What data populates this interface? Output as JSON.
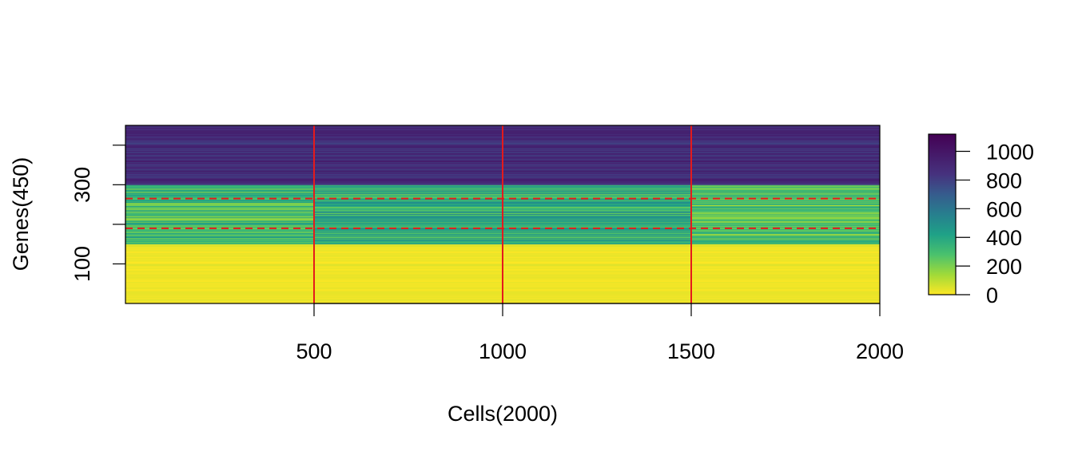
{
  "chart_data": {
    "type": "heatmap",
    "title": "",
    "xlabel": "Cells(2000)",
    "ylabel": "Genes(450)",
    "xlim": [
      0,
      2000
    ],
    "ylim": [
      0,
      450
    ],
    "x_ticks": [
      500,
      1000,
      1500,
      2000
    ],
    "x_tick_labels": [
      "500",
      "1000",
      "1500",
      "2000"
    ],
    "y_ticks": [
      100,
      200,
      300,
      400
    ],
    "y_tick_labels": [
      "100",
      "",
      "300",
      ""
    ],
    "colorscale": "viridis",
    "color_reversed": true,
    "value_range": [
      0,
      1120
    ],
    "colorbar_ticks": [
      0,
      200,
      400,
      600,
      800,
      1000
    ],
    "colorbar_tick_labels": [
      "0",
      "200",
      "400",
      "600",
      "800",
      "1000"
    ],
    "cell_group_boundaries": [
      500,
      1000,
      1500
    ],
    "gene_region_markers": [
      190,
      265
    ],
    "boundary_line_color": "#e41a1c",
    "blocks": [
      {
        "genes": [
          0,
          150
        ],
        "cells": [
          0,
          2000
        ],
        "mean_value": 20
      },
      {
        "genes": [
          150,
          300
        ],
        "cells": [
          0,
          500
        ],
        "mean_value": 300
      },
      {
        "genes": [
          150,
          300
        ],
        "cells": [
          500,
          1500
        ],
        "mean_value": 380
      },
      {
        "genes": [
          150,
          300
        ],
        "cells": [
          1500,
          2000
        ],
        "mean_value": 270
      },
      {
        "genes": [
          300,
          450
        ],
        "cells": [
          0,
          2000
        ],
        "mean_value": 880
      }
    ]
  }
}
